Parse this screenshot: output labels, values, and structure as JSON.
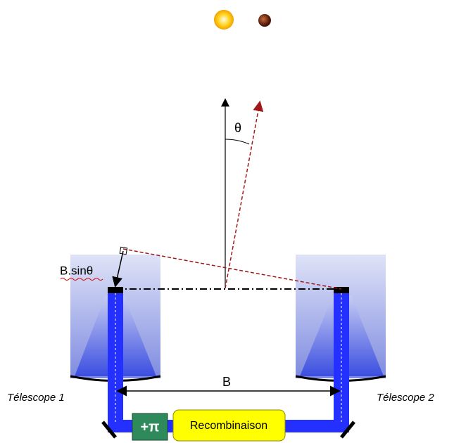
{
  "angle_label": "θ",
  "delay_label": "B.sinθ",
  "baseline_label": "B",
  "telescopes": [
    {
      "label": "Télescope 1"
    },
    {
      "label": "Télescope 2"
    }
  ],
  "phase_shift": "+π",
  "combiner": "Recombinaison"
}
